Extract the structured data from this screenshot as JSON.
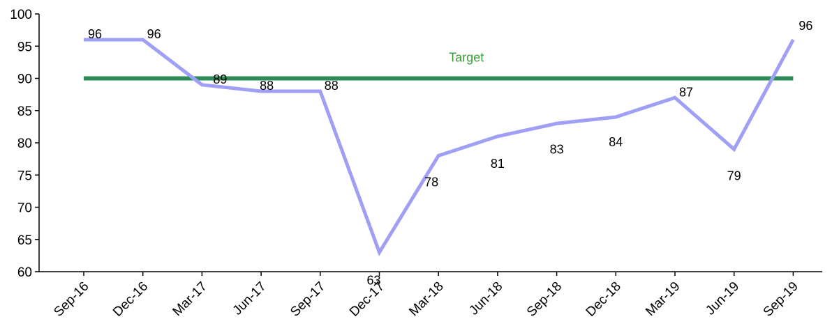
{
  "chart_data": {
    "type": "line",
    "title": "",
    "xlabel": "",
    "ylabel": "",
    "ylim": [
      60,
      100
    ],
    "yticks": [
      "60",
      "65",
      "70",
      "75",
      "80",
      "85",
      "90",
      "95",
      "100"
    ],
    "categories": [
      "Sep-16",
      "Dec-16",
      "Mar-17",
      "Jun-17",
      "Sep-17",
      "Dec-17",
      "Mar-18",
      "Jun-18",
      "Sep-18",
      "Dec-18",
      "Mar-19",
      "Jun-19",
      "Sep-19"
    ],
    "series": [
      {
        "values": [
          96,
          96,
          89,
          88,
          88,
          63,
          78,
          81,
          83,
          84,
          87,
          79,
          96
        ],
        "labels": [
          "96",
          "96",
          "89",
          "88",
          "88",
          "63",
          "78",
          "81",
          "83",
          "84",
          "87",
          "79",
          "96"
        ],
        "color": "#9f9ff5"
      }
    ],
    "target": {
      "label": "Target",
      "value": 90,
      "line_color": "#2e8b57",
      "label_color": "#3a9a3a"
    },
    "grid": false,
    "legend": "none"
  }
}
